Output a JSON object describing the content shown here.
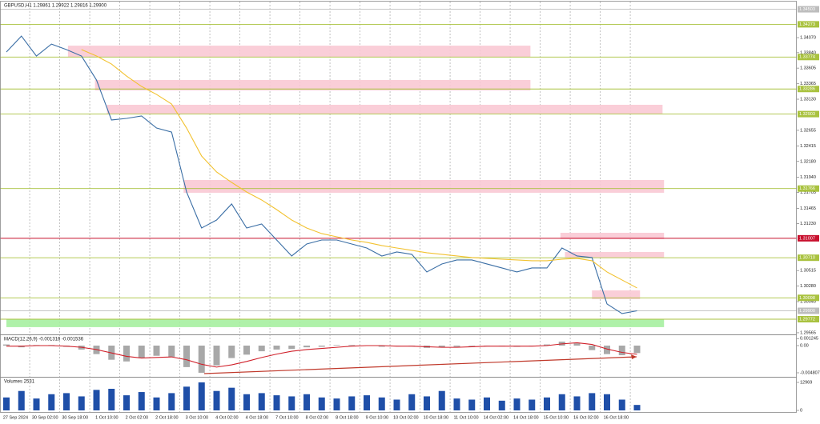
{
  "chart_data": [
    {
      "type": "line",
      "title": "GBPUSD,H1  1.29861 1.29922 1.29816 1.29900",
      "series": [
        {
          "color": "#3a6ea5",
          "values": [
            1.3385,
            1.34094,
            1.33789,
            1.33972,
            1.33887,
            1.33789,
            1.33423,
            1.32813,
            1.32837,
            1.32874,
            1.3269,
            1.32629,
            1.31714,
            1.31164,
            1.31286,
            1.31531,
            1.31164,
            1.31225,
            1.30981,
            1.30737,
            1.3092,
            1.30981,
            1.30981,
            1.3092,
            1.30859,
            1.30737,
            1.30798,
            1.30762,
            1.30493,
            1.30615,
            1.30676,
            1.30676,
            1.30615,
            1.30554,
            1.30493,
            1.30554,
            1.30554,
            1.30859,
            1.30737,
            1.30713,
            1.30005,
            1.29858,
            1.299
          ]
        },
        {
          "color": "#f2c230",
          "values": [
            null,
            null,
            null,
            null,
            null,
            1.33887,
            1.33789,
            1.33667,
            1.33484,
            1.33325,
            1.33203,
            1.33057,
            1.3269,
            1.32263,
            1.32019,
            1.3186,
            1.31714,
            1.31592,
            1.31445,
            1.31286,
            1.31164,
            1.31079,
            1.3103,
            1.30981,
            1.30945,
            1.30896,
            1.30859,
            1.30823,
            1.30786,
            1.30762,
            1.30737,
            1.30713,
            1.30701,
            1.30688,
            1.30676,
            1.30664,
            1.30664,
            1.30688,
            1.30701,
            1.30664,
            1.30493,
            1.30371,
            1.30249
          ]
        }
      ],
      "ylim": [
        1.2954,
        1.3462
      ],
      "yticks": [
        {
          "value": 1.3407,
          "label": "1.34070"
        },
        {
          "value": 1.3384,
          "label": "1.33840"
        },
        1.33605,
        1.33365,
        {
          "value": 1.3313,
          "label": "1.33130"
        },
        1.32655,
        1.32415,
        {
          "value": 1.3218,
          "label": "1.32180"
        },
        {
          "value": 1.3194,
          "label": "1.31940"
        },
        1.31705,
        1.31465,
        {
          "value": 1.3123,
          "label": "1.31230"
        },
        1.30515,
        {
          "value": 1.3028,
          "label": "1.30280"
        },
        {
          "value": 1.3004,
          "label": "1.30040"
        },
        1.29565
      ],
      "xticks": [
        {
          "value": 1.55,
          "label": "27 Sep 2024"
        },
        {
          "value": 3.55,
          "label": "30 Sep 02:00"
        },
        {
          "value": 5.55,
          "label": "30 Sep 18:00"
        },
        {
          "value": 7.55,
          "label": "1 Oct 10:00"
        },
        {
          "value": 9.55,
          "label": "2 Oct 02:00"
        },
        {
          "value": 11.55,
          "label": "2 Oct 18:00"
        },
        {
          "value": 13.55,
          "label": "3 Oct 10:00"
        },
        {
          "value": 15.55,
          "label": "4 Oct 02:00"
        },
        {
          "value": 17.55,
          "label": "4 Oct 18:00"
        },
        {
          "value": 19.55,
          "label": "7 Oct 10:00"
        },
        {
          "value": 21.55,
          "label": "8 Oct 02:00"
        },
        {
          "value": 23.55,
          "label": "8 Oct 18:00"
        },
        {
          "value": 25.55,
          "label": "9 Oct 10:00"
        },
        {
          "value": 27.55,
          "label": "10 Oct 02:00"
        },
        {
          "value": 29.55,
          "label": "10 Oct 18:00"
        },
        {
          "value": 31.55,
          "label": "11 Oct 10:00"
        },
        {
          "value": 33.55,
          "label": "14 Oct 02:00"
        },
        {
          "value": 35.55,
          "label": "14 Oct 18:00"
        },
        {
          "value": 37.55,
          "label": "15 Oct 10:00"
        },
        {
          "value": 39.55,
          "label": "16 Oct 02:00"
        },
        {
          "value": 41.55,
          "label": "16 Oct 18:00"
        }
      ],
      "levels": [
        {
          "value": 1.34503,
          "color": "#bdbdbd"
        },
        {
          "value": 1.34273,
          "color": "#a9c23f"
        },
        {
          "value": 1.33774,
          "color": "#a9c23f"
        },
        {
          "value": 1.33286,
          "color": "#a9c23f"
        },
        {
          "value": 1.32903,
          "color": "#a9c23f"
        },
        {
          "value": 1.31766,
          "color": "#a9c23f"
        },
        {
          "value": 1.31007,
          "color": "#c8102e"
        },
        {
          "value": 1.3071,
          "label": "1.30710",
          "color": "#a9c23f"
        },
        {
          "value": 1.30098,
          "color": "#a9c23f"
        },
        {
          "value": 1.299,
          "label": "1.29900",
          "color": "#bdbdbd"
        },
        {
          "value": 1.29772,
          "color": "#a9c23f"
        }
      ],
      "zones": [
        {
          "from": 1.33777,
          "to": 1.33948,
          "x0": 4.1,
          "x1": 34.9,
          "color": "#f9c9d4"
        },
        {
          "from": 1.33264,
          "to": 1.33423,
          "x0": 5.9,
          "x1": 34.9,
          "color": "#f9c9d4"
        },
        {
          "from": 1.3291,
          "to": 1.33045,
          "x0": 6.7,
          "x1": 43.7,
          "color": "#f9c9d4"
        },
        {
          "from": 1.31702,
          "to": 1.31897,
          "x0": 11.8,
          "x1": 43.8,
          "color": "#f9c9d4"
        },
        {
          "from": 1.30994,
          "to": 1.31091,
          "x0": 36.9,
          "x1": 43.8,
          "color": "#f9c9d4"
        },
        {
          "from": 1.30713,
          "to": 1.30798,
          "x0": 37.2,
          "x1": 43.8,
          "color": "#f9c9d4"
        },
        {
          "from": 1.30078,
          "to": 1.30212,
          "x0": 39,
          "x1": 42.2,
          "color": "#f9c9d4"
        },
        {
          "from": 1.29651,
          "to": 1.29773,
          "x0": 0,
          "x1": 43.8,
          "color": "#a6f0a0"
        }
      ]
    },
    {
      "type": "bar",
      "title": "MACD(12,26,9) -0.001316 -0.001536",
      "series": [
        {
          "kind": "bar",
          "color": "#a8a8a8",
          "values": [
            0.0002,
            -0.0003,
            0.0001,
            0.0001,
            -0.0002,
            -0.0007,
            -0.0015,
            -0.0025,
            -0.0028,
            -0.0022,
            -0.0018,
            -0.002,
            -0.0038,
            -0.0048,
            -0.0035,
            -0.0022,
            -0.0016,
            -0.001,
            -0.0007,
            -0.0006,
            -0.0003,
            -0.0002,
            0.0001,
            0.0001,
            0,
            -0.0002,
            -0.0001,
            0,
            -0.0004,
            -0.0003,
            -0.0002,
            -0.0001,
            0,
            -0.0001,
            -0.0002,
            -0.0001,
            0.0002,
            0.0007,
            0.0004,
            -0.0008,
            -0.0015,
            -0.0017,
            -0.001316
          ]
        },
        {
          "kind": "line",
          "color": "#d0202a",
          "values": [
            -0.0001,
            -0.0001,
            0,
            0,
            -0.0001,
            -0.0003,
            -0.0007,
            -0.0013,
            -0.0019,
            -0.0022,
            -0.0021,
            -0.002,
            -0.0025,
            -0.0033,
            -0.0038,
            -0.0034,
            -0.0028,
            -0.0021,
            -0.0015,
            -0.001,
            -0.0007,
            -0.0005,
            -0.0003,
            -0.0001,
            0,
            0,
            -0.0001,
            -0.0001,
            -0.0002,
            -0.0003,
            -0.0003,
            -0.0002,
            -0.0001,
            -0.0001,
            -0.0001,
            -0.0001,
            0,
            0.0003,
            0.0005,
            0.0002,
            -0.0006,
            -0.0012,
            -0.001536
          ]
        }
      ],
      "ylim": [
        -0.005514,
        0.001838
      ],
      "yticks": [
        0.001245,
        {
          "value": 0,
          "label": "0.00"
        },
        -0.004807
      ]
    },
    {
      "type": "bar",
      "title": "Volumes 2531",
      "series": [
        {
          "kind": "bar",
          "color": "#1f4fa8",
          "values": [
            6000,
            9000,
            5500,
            7500,
            8000,
            6500,
            9500,
            10000,
            7000,
            8500,
            6000,
            8000,
            11000,
            12969,
            9000,
            10500,
            7500,
            8000,
            7000,
            6500,
            7500,
            6000,
            5500,
            6500,
            7000,
            6000,
            5000,
            7500,
            6500,
            9000,
            5500,
            5000,
            6000,
            4500,
            5500,
            5000,
            6000,
            7500,
            6500,
            8000,
            7500,
            5000,
            2531
          ]
        }
      ],
      "ylim": [
        0,
        14820
      ],
      "yticks": [
        12969,
        0
      ]
    }
  ]
}
